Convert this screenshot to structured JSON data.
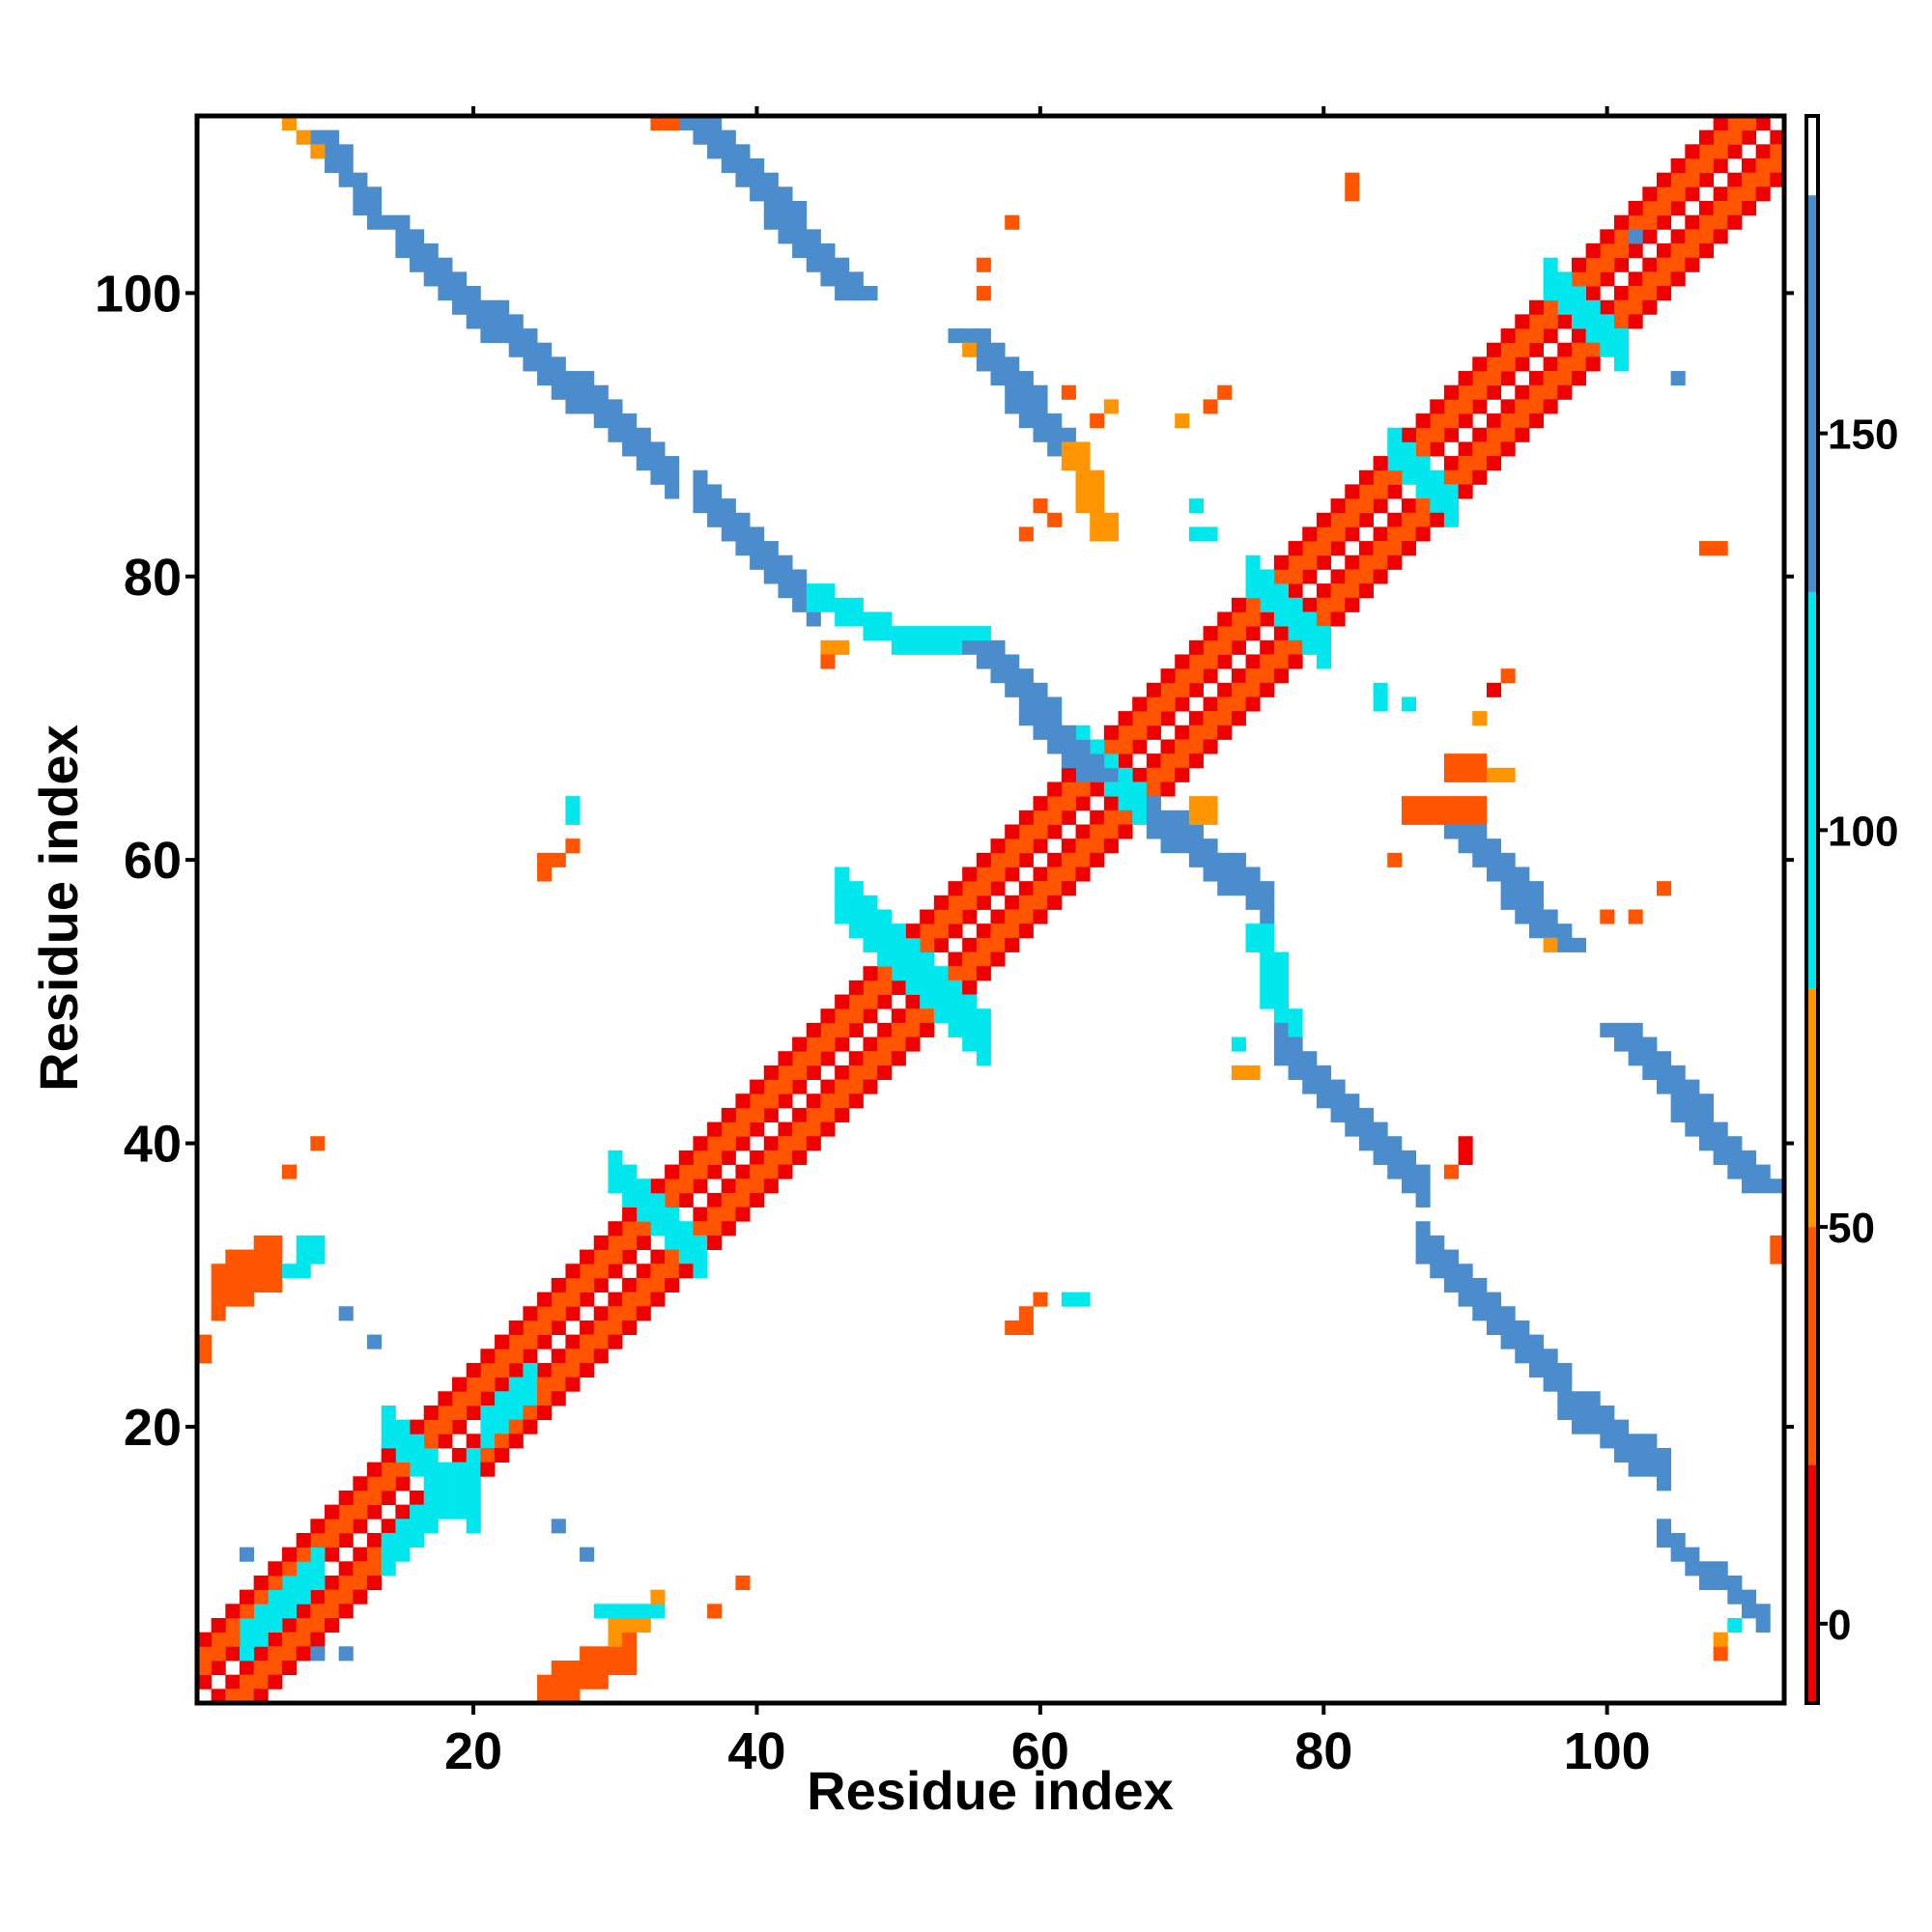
{
  "chart_data": {
    "type": "heatmap",
    "xlabel": "Residue index",
    "ylabel": "Residue index",
    "xlim": [
      0.5,
      112.5
    ],
    "ylim": [
      0.5,
      112.5
    ],
    "x_ticks": [
      20,
      40,
      60,
      80,
      100
    ],
    "y_ticks": [
      20,
      40,
      60,
      80,
      100
    ],
    "colorbar": {
      "range": [
        -10,
        190
      ],
      "ticks": [
        0,
        50,
        100,
        150
      ],
      "bands": [
        {
          "from": -10,
          "to": 20,
          "color": "#ee0000"
        },
        {
          "from": 20,
          "to": 50,
          "color": "#ff5500"
        },
        {
          "from": 50,
          "to": 80,
          "color": "#ff9500"
        },
        {
          "from": 80,
          "to": 130,
          "color": "#00e8ee"
        },
        {
          "from": 130,
          "to": 180,
          "color": "#4a8ccc"
        },
        {
          "from": 180,
          "to": 190,
          "color": "#ffffff"
        }
      ]
    },
    "grid": false,
    "legend": "colorbar-right",
    "main_diagonal": [
      {
        "i0": 1,
        "i1": 112,
        "offset": 1,
        "value": 10
      },
      {
        "i0": 1,
        "i1": 112,
        "offset": 2,
        "value": 40
      },
      {
        "i0": 1,
        "i1": 112,
        "offset": 3,
        "value": 40
      },
      {
        "i0": 1,
        "i1": 112,
        "offset": 4,
        "value": 10
      }
    ],
    "features": [
      {
        "x0": 14,
        "y0": 11,
        "x1": 20,
        "y1": 17,
        "w": 3,
        "value": 100
      },
      {
        "x0": 14,
        "y0": 20,
        "x1": 20,
        "y1": 14,
        "w": 3,
        "value": 110
      },
      {
        "x0": 4,
        "y0": 5,
        "x1": 9,
        "y1": 10,
        "w": 3,
        "value": 110
      },
      {
        "x0": 21,
        "y0": 20,
        "x1": 24,
        "y1": 23,
        "w": 3,
        "value": 110
      },
      {
        "x0": 30,
        "y0": 38,
        "x1": 36,
        "y1": 32,
        "w": 3,
        "value": 115
      },
      {
        "x0": 46,
        "y0": 57,
        "x1": 56,
        "y1": 47,
        "w": 4,
        "value": 105
      },
      {
        "x0": 63,
        "y0": 68,
        "x1": 68,
        "y1": 63,
        "w": 3,
        "value": 100
      },
      {
        "x0": 75,
        "y0": 80,
        "x1": 80,
        "y1": 75,
        "w": 3,
        "value": 120
      },
      {
        "x0": 85,
        "y0": 89,
        "x1": 89,
        "y1": 85,
        "w": 3,
        "value": 120
      },
      {
        "x0": 96,
        "y0": 101,
        "x1": 101,
        "y1": 96,
        "w": 3,
        "value": 120
      },
      {
        "x0": 9,
        "y0": 111,
        "x1": 13,
        "y1": 105,
        "w": 2,
        "value": 145
      },
      {
        "x0": 7,
        "y0": 112,
        "x1": 9,
        "y1": 110,
        "w": 1,
        "value": 60
      },
      {
        "x0": 15,
        "y0": 104,
        "x1": 21,
        "y1": 98,
        "w": 3,
        "value": 140
      },
      {
        "x0": 22,
        "y0": 98,
        "x1": 34,
        "y1": 87,
        "w": 3,
        "value": 150
      },
      {
        "x0": 36,
        "y0": 86,
        "x1": 44,
        "y1": 78,
        "w": 3,
        "value": 150
      },
      {
        "x0": 44,
        "y0": 78,
        "x1": 50,
        "y1": 75,
        "w": 2,
        "value": 125
      },
      {
        "x0": 50,
        "y0": 75,
        "x1": 56,
        "y1": 75,
        "w": 2,
        "value": 110
      },
      {
        "x0": 56,
        "y0": 75,
        "x1": 64,
        "y1": 66,
        "w": 3,
        "value": 140
      },
      {
        "x0": 36,
        "y0": 112,
        "x1": 47,
        "y1": 100,
        "w": 3,
        "value": 145
      },
      {
        "x0": 55,
        "y0": 97,
        "x1": 62,
        "y1": 89,
        "w": 3,
        "value": 150
      },
      {
        "x0": 62,
        "y0": 89,
        "x1": 64,
        "y1": 83,
        "w": 2,
        "value": 50
      },
      {
        "x0": 68,
        "y0": 63,
        "x1": 76,
        "y1": 57,
        "w": 3,
        "value": 140
      },
      {
        "x0": 75,
        "y0": 55,
        "x1": 77,
        "y1": 47,
        "w": 2,
        "value": 110
      },
      {
        "x0": 77,
        "y0": 47,
        "x1": 87,
        "y1": 37,
        "w": 3,
        "value": 150
      },
      {
        "x0": 87,
        "y0": 33,
        "x1": 97,
        "y1": 23,
        "w": 3,
        "value": 150
      },
      {
        "x0": 97,
        "y0": 22,
        "x1": 104,
        "y1": 17,
        "w": 3,
        "value": 135
      },
      {
        "x0": 104,
        "y0": 12,
        "x1": 111,
        "y1": 6,
        "w": 2,
        "value": 150
      },
      {
        "x0": 101,
        "y0": 48,
        "x1": 111,
        "y1": 37,
        "w": 3,
        "value": 140
      },
      {
        "x0": 90,
        "y0": 62,
        "x1": 97,
        "y1": 54,
        "w": 3,
        "value": 150
      },
      {
        "x0": 86,
        "y0": 63,
        "x1": 91,
        "y1": 63,
        "w": 2,
        "value": 45
      },
      {
        "x0": 2,
        "y0": 29,
        "x1": 6,
        "y1": 31,
        "w": 4,
        "value": 30
      },
      {
        "x0": 7,
        "y0": 31,
        "x1": 8,
        "y1": 33,
        "w": 2,
        "value": 90
      },
      {
        "x0": 25,
        "y0": 1,
        "x1": 31,
        "y1": 4,
        "w": 3,
        "value": 25
      },
      {
        "x0": 30,
        "y0": 5,
        "x1": 33,
        "y1": 7,
        "w": 2,
        "value": 50
      },
      {
        "x0": 29,
        "y0": 7,
        "x1": 33,
        "y1": 7,
        "w": 1,
        "value": 100
      },
      {
        "x0": 89,
        "y0": 66,
        "x1": 91,
        "y1": 66,
        "w": 2,
        "value": 30
      },
      {
        "x0": 71,
        "y0": 63,
        "x1": 72,
        "y1": 63,
        "w": 2,
        "value": 70
      }
    ],
    "points": [
      {
        "x": 34,
        "y": 112,
        "value": 45
      },
      {
        "x": 33,
        "y": 112,
        "value": 45
      },
      {
        "x": 46,
        "y": 75,
        "value": 70
      },
      {
        "x": 45,
        "y": 75,
        "value": 70
      },
      {
        "x": 45,
        "y": 74,
        "value": 45
      },
      {
        "x": 58,
        "y": 105,
        "value": 45
      },
      {
        "x": 56,
        "y": 102,
        "value": 45
      },
      {
        "x": 56,
        "y": 100,
        "value": 45
      },
      {
        "x": 55,
        "y": 96,
        "value": 70
      },
      {
        "x": 62,
        "y": 93,
        "value": 45
      },
      {
        "x": 64,
        "y": 91,
        "value": 45
      },
      {
        "x": 65,
        "y": 92,
        "value": 70
      },
      {
        "x": 60,
        "y": 85,
        "value": 45
      },
      {
        "x": 61,
        "y": 84,
        "value": 45
      },
      {
        "x": 59,
        "y": 83,
        "value": 45
      },
      {
        "x": 70,
        "y": 91,
        "value": 70
      },
      {
        "x": 72,
        "y": 92,
        "value": 30
      },
      {
        "x": 73,
        "y": 93,
        "value": 45
      },
      {
        "x": 71,
        "y": 85,
        "value": 120
      },
      {
        "x": 71,
        "y": 83,
        "value": 120
      },
      {
        "x": 72,
        "y": 83,
        "value": 120
      },
      {
        "x": 82,
        "y": 108,
        "value": 45
      },
      {
        "x": 82,
        "y": 107,
        "value": 45
      },
      {
        "x": 102,
        "y": 104,
        "value": 150
      },
      {
        "x": 105,
        "y": 94,
        "value": 150
      },
      {
        "x": 107,
        "y": 82,
        "value": 45
      },
      {
        "x": 108,
        "y": 82,
        "value": 45
      },
      {
        "x": 84,
        "y": 71,
        "value": 120
      },
      {
        "x": 84,
        "y": 72,
        "value": 120
      },
      {
        "x": 86,
        "y": 71,
        "value": 120
      },
      {
        "x": 91,
        "y": 70,
        "value": 70
      },
      {
        "x": 92,
        "y": 72,
        "value": 10
      },
      {
        "x": 93,
        "y": 73,
        "value": 30
      },
      {
        "x": 92,
        "y": 66,
        "value": 50
      },
      {
        "x": 93,
        "y": 66,
        "value": 70
      },
      {
        "x": 85,
        "y": 60,
        "value": 45
      },
      {
        "x": 104,
        "y": 58,
        "value": 45
      },
      {
        "x": 100,
        "y": 56,
        "value": 45
      },
      {
        "x": 102,
        "y": 56,
        "value": 45
      },
      {
        "x": 96,
        "y": 54,
        "value": 70
      },
      {
        "x": 75,
        "y": 45,
        "value": 70
      },
      {
        "x": 74,
        "y": 45,
        "value": 70
      },
      {
        "x": 74,
        "y": 47,
        "value": 100
      },
      {
        "x": 90,
        "y": 39,
        "value": 10
      },
      {
        "x": 90,
        "y": 40,
        "value": 10
      },
      {
        "x": 89,
        "y": 38,
        "value": 30
      },
      {
        "x": 112,
        "y": 33,
        "value": 45
      },
      {
        "x": 112,
        "y": 32,
        "value": 45
      },
      {
        "x": 108,
        "y": 4,
        "value": 45
      },
      {
        "x": 108,
        "y": 5,
        "value": 70
      },
      {
        "x": 109,
        "y": 6,
        "value": 100
      },
      {
        "x": 27,
        "y": 64,
        "value": 100
      },
      {
        "x": 27,
        "y": 63,
        "value": 100
      },
      {
        "x": 25,
        "y": 60,
        "value": 45
      },
      {
        "x": 25,
        "y": 59,
        "value": 45
      },
      {
        "x": 26,
        "y": 60,
        "value": 45
      },
      {
        "x": 27,
        "y": 61,
        "value": 45
      },
      {
        "x": 9,
        "y": 40,
        "value": 45
      },
      {
        "x": 7,
        "y": 38,
        "value": 45
      },
      {
        "x": 11,
        "y": 28,
        "value": 150
      },
      {
        "x": 13,
        "y": 26,
        "value": 150
      },
      {
        "x": 58,
        "y": 27,
        "value": 45
      },
      {
        "x": 59,
        "y": 27,
        "value": 45
      },
      {
        "x": 59,
        "y": 28,
        "value": 45
      },
      {
        "x": 60,
        "y": 29,
        "value": 45
      },
      {
        "x": 62,
        "y": 29,
        "value": 115
      },
      {
        "x": 63,
        "y": 29,
        "value": 115
      },
      {
        "x": 26,
        "y": 13,
        "value": 150
      },
      {
        "x": 28,
        "y": 11,
        "value": 150
      },
      {
        "x": 39,
        "y": 9,
        "value": 45
      },
      {
        "x": 37,
        "y": 7,
        "value": 45
      },
      {
        "x": 11,
        "y": 4,
        "value": 150
      },
      {
        "x": 9,
        "y": 4,
        "value": 150
      },
      {
        "x": 4,
        "y": 11,
        "value": 150
      },
      {
        "x": 1,
        "y": 26,
        "value": 45
      },
      {
        "x": 1,
        "y": 25,
        "value": 45
      }
    ]
  }
}
